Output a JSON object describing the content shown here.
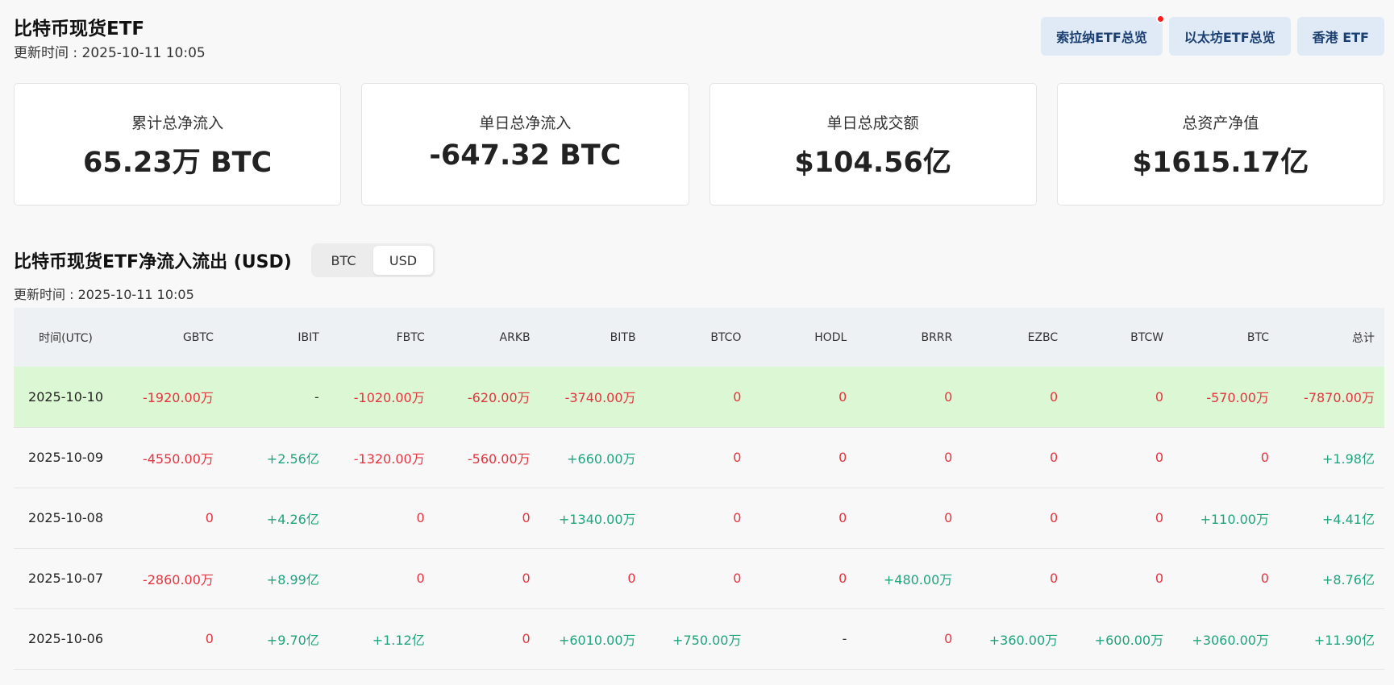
{
  "header": {
    "title": "比特币现货ETF",
    "updated": "更新时间 : 2025-10-11 10:05"
  },
  "nav": [
    {
      "label": "索拉纳ETF总览",
      "badge": true
    },
    {
      "label": "以太坊ETF总览",
      "badge": false
    },
    {
      "label": "香港 ETF",
      "badge": false
    }
  ],
  "stats": [
    {
      "label": "累计总净流入",
      "value": "65.23万 BTC"
    },
    {
      "label": "单日总净流入",
      "value": "-647.32 BTC"
    },
    {
      "label": "单日总成交额",
      "value": "$104.56亿"
    },
    {
      "label": "总资产净值",
      "value": "$1615.17亿"
    }
  ],
  "section": {
    "title": "比特币现货ETF净流入流出 (USD)",
    "updated": "更新时间 : 2025-10-11 10:05",
    "toggle": [
      "BTC",
      "USD"
    ],
    "toggle_selected": "USD"
  },
  "table": {
    "columns": [
      "时间(UTC)",
      "GBTC",
      "IBIT",
      "FBTC",
      "ARKB",
      "BITB",
      "BTCO",
      "HODL",
      "BRRR",
      "EZBC",
      "BTCW",
      "BTC",
      "总计"
    ],
    "rows": [
      {
        "highlight": true,
        "cells": [
          "2025-10-10",
          "-1920.00万",
          "-",
          "-1020.00万",
          "-620.00万",
          "-3740.00万",
          "0",
          "0",
          "0",
          "0",
          "0",
          "-570.00万",
          "-7870.00万"
        ]
      },
      {
        "highlight": false,
        "cells": [
          "2025-10-09",
          "-4550.00万",
          "+2.56亿",
          "-1320.00万",
          "-560.00万",
          "+660.00万",
          "0",
          "0",
          "0",
          "0",
          "0",
          "0",
          "+1.98亿"
        ]
      },
      {
        "highlight": false,
        "cells": [
          "2025-10-08",
          "0",
          "+4.26亿",
          "0",
          "0",
          "+1340.00万",
          "0",
          "0",
          "0",
          "0",
          "0",
          "+110.00万",
          "+4.41亿"
        ]
      },
      {
        "highlight": false,
        "cells": [
          "2025-10-07",
          "-2860.00万",
          "+8.99亿",
          "0",
          "0",
          "0",
          "0",
          "0",
          "+480.00万",
          "0",
          "0",
          "0",
          "+8.76亿"
        ]
      },
      {
        "highlight": false,
        "cells": [
          "2025-10-06",
          "0",
          "+9.70亿",
          "+1.12亿",
          "0",
          "+6010.00万",
          "+750.00万",
          "-",
          "0",
          "+360.00万",
          "+600.00万",
          "+3060.00万",
          "+11.90亿"
        ]
      }
    ]
  }
}
